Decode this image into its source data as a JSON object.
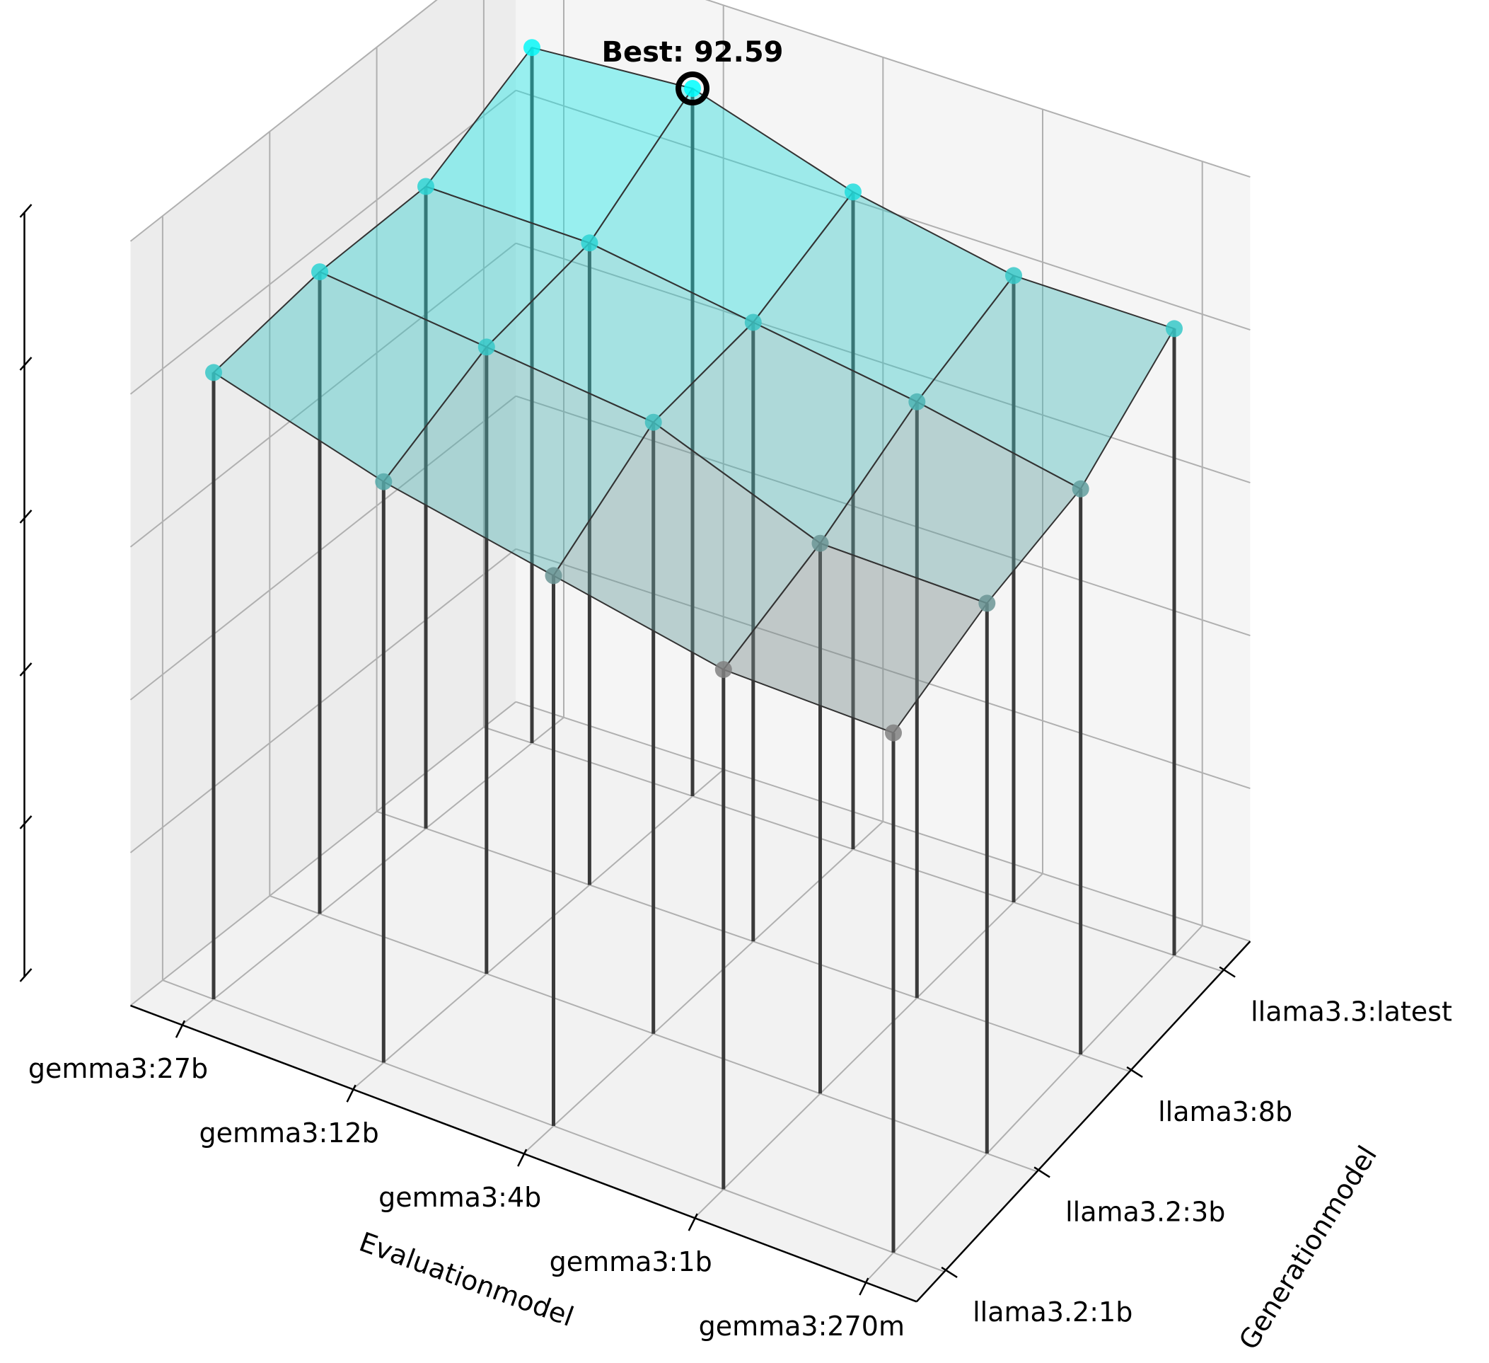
{
  "chart_data": {
    "type": "surface3d",
    "title": "",
    "xlabel": "Evaluationmodel",
    "ylabel": "Generationmodel",
    "zlabel": "",
    "x_categories": [
      "gemma3:27b",
      "gemma3:12b",
      "gemma3:4b",
      "gemma3:1b",
      "gemma3:270m"
    ],
    "y_categories": [
      "llama3.2:1b",
      "llama3.2:3b",
      "llama3:8b",
      "llama3.3:latest"
    ],
    "zlim": [
      0,
      100
    ],
    "zticks": [
      "0",
      "20",
      "40",
      "60",
      "80",
      "100"
    ],
    "grid": true,
    "values": [
      [
        82,
        84,
        84,
        91
      ],
      [
        76,
        82,
        84,
        92.59
      ],
      [
        72,
        80,
        81,
        86
      ],
      [
        68,
        72,
        78,
        82
      ],
      [
        68,
        72,
        74,
        82
      ]
    ],
    "colormap_low": "#808080",
    "colormap_high": "#00ffff",
    "annotation": {
      "text": "Best: 92.59",
      "x_category": "gemma3:12b",
      "y_category": "llama3.3:latest",
      "value": 92.59
    }
  }
}
